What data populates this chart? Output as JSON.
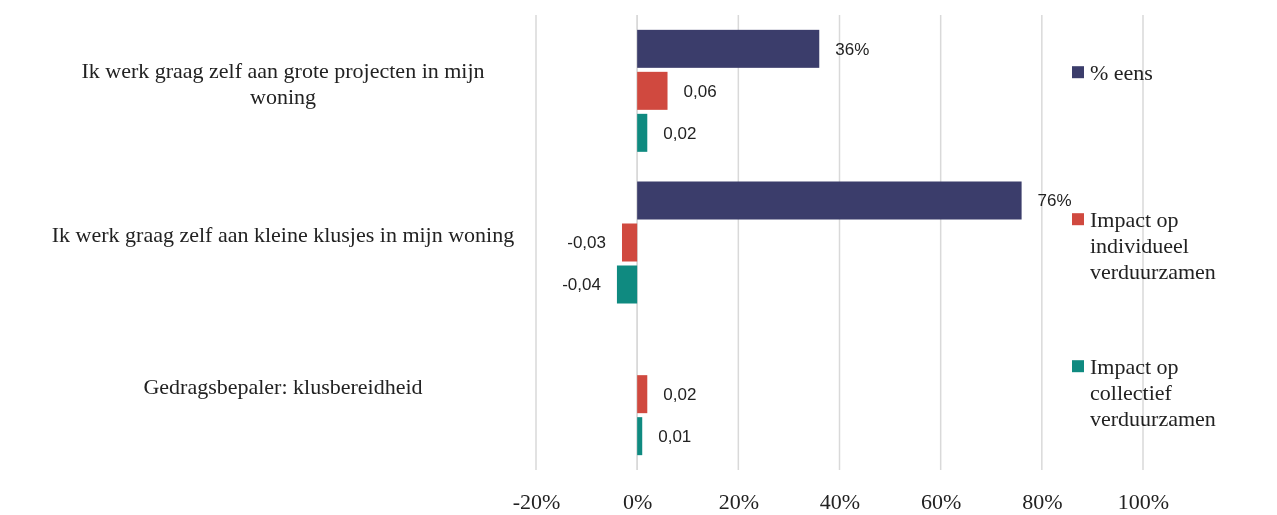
{
  "chart_data": {
    "type": "bar",
    "orientation": "horizontal",
    "categories": [
      "Ik werk graag zelf aan grote projecten in mijn woning",
      "Ik werk graag zelf aan kleine klusjes in mijn woning",
      "Gedragsbepaler: klusbereidheid"
    ],
    "series": [
      {
        "name": "% eens",
        "color": "#3b3d6b",
        "values": [
          0.36,
          0.76,
          null
        ],
        "value_labels": [
          "36%",
          "76%",
          null
        ]
      },
      {
        "name": "Impact op individueel verduurzamen",
        "color": "#d0493f",
        "values": [
          0.06,
          -0.03,
          0.02
        ],
        "value_labels": [
          "0,06",
          "-0,03",
          "0,02"
        ]
      },
      {
        "name": "Impact op collectief verduurzamen",
        "color": "#0f8a80",
        "values": [
          0.02,
          -0.04,
          0.01
        ],
        "value_labels": [
          "0,02",
          "-0,04",
          "0,01"
        ]
      }
    ],
    "xlim": [
      -0.2,
      1
    ],
    "xticks": [
      {
        "value": -0.2,
        "label": "-20%"
      },
      {
        "value": 0,
        "label": "0%"
      },
      {
        "value": 0.2,
        "label": "20%"
      },
      {
        "value": 0.4,
        "label": "40%"
      },
      {
        "value": 0.6,
        "label": "60%"
      },
      {
        "value": 0.8,
        "label": "80%"
      },
      {
        "value": 1,
        "label": "100%"
      }
    ],
    "grid": "x",
    "legend": "right"
  }
}
